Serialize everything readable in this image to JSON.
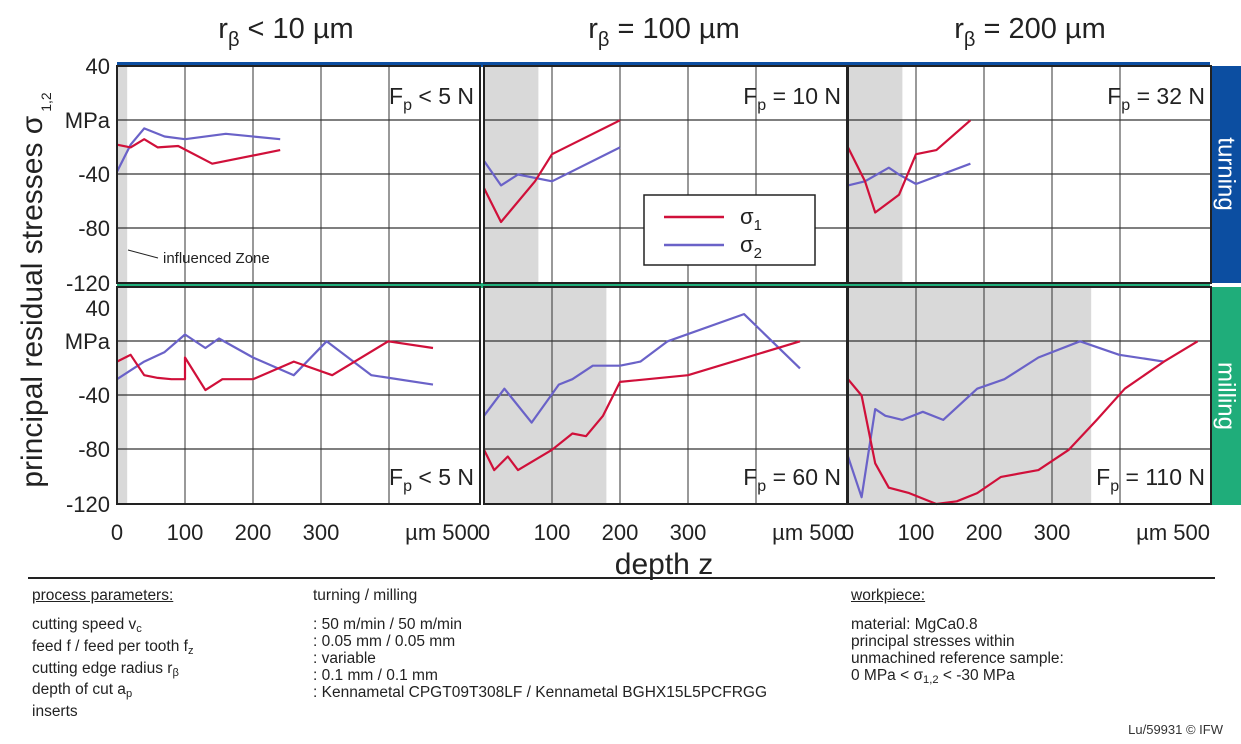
{
  "chart_data": {
    "type": "line",
    "ylabel": "principal residual stresses σ",
    "ylabel_sub": "1,2",
    "xlabel": "depth z",
    "row_labels": [
      "turning",
      "milling"
    ],
    "col_titles": [
      {
        "main": "r",
        "sub": "β",
        "rest": " < 10 µm"
      },
      {
        "main": "r",
        "sub": "β",
        "rest": " = 100 µm"
      },
      {
        "main": "r",
        "sub": "β",
        "rest": " = 200 µm"
      }
    ],
    "ylim": [
      -120,
      40
    ],
    "yticks": [
      "40",
      "MPa",
      "-40",
      "-80",
      "-120"
    ],
    "xlim": [
      0,
      500
    ],
    "xticks": [
      "0",
      "100",
      "200",
      "300",
      "µm 500"
    ],
    "grid": true,
    "legend": {
      "entries": [
        {
          "main": "σ",
          "sub": "1"
        },
        {
          "main": "σ",
          "sub": "2"
        }
      ],
      "placement": "center"
    },
    "series_colors": {
      "sigma1": "#d0103a",
      "sigma2": "#6a62c8"
    },
    "annotation": "influenced Zone",
    "panels": [
      {
        "row": "turning",
        "col": 0,
        "force": "< 5 N",
        "zone": [
          0,
          15
        ],
        "sigma1": [
          [
            0,
            -18
          ],
          [
            20,
            -20
          ],
          [
            40,
            -14
          ],
          [
            60,
            -20
          ],
          [
            90,
            -19
          ],
          [
            140,
            -32
          ],
          [
            240,
            -22
          ]
        ],
        "sigma2": [
          [
            0,
            -38
          ],
          [
            20,
            -18
          ],
          [
            40,
            -6
          ],
          [
            70,
            -12
          ],
          [
            100,
            -14
          ],
          [
            160,
            -10
          ],
          [
            240,
            -14
          ]
        ]
      },
      {
        "row": "turning",
        "col": 1,
        "force": "= 10 N",
        "zone": [
          0,
          80
        ],
        "sigma1": [
          [
            0,
            -50
          ],
          [
            25,
            -75
          ],
          [
            75,
            -45
          ],
          [
            100,
            -25
          ],
          [
            200,
            0
          ]
        ],
        "sigma2": [
          [
            0,
            -30
          ],
          [
            25,
            -48
          ],
          [
            50,
            -40
          ],
          [
            100,
            -45
          ],
          [
            200,
            -20
          ]
        ]
      },
      {
        "row": "turning",
        "col": 2,
        "force": "= 32 N",
        "zone": [
          0,
          80
        ],
        "sigma1": [
          [
            0,
            -20
          ],
          [
            25,
            -45
          ],
          [
            40,
            -68
          ],
          [
            75,
            -55
          ],
          [
            100,
            -25
          ],
          [
            130,
            -22
          ],
          [
            180,
            0
          ]
        ],
        "sigma2": [
          [
            0,
            -48
          ],
          [
            25,
            -45
          ],
          [
            60,
            -35
          ],
          [
            75,
            -40
          ],
          [
            100,
            -47
          ],
          [
            180,
            -32
          ]
        ]
      },
      {
        "row": "milling",
        "col": 0,
        "force": "< 5 N",
        "zone": [
          0,
          15
        ],
        "sigma1": [
          [
            0,
            -15
          ],
          [
            20,
            -10
          ],
          [
            40,
            -25
          ],
          [
            60,
            -27
          ],
          [
            80,
            -28
          ],
          [
            100,
            -28
          ],
          [
            100,
            -12
          ],
          [
            130,
            -36
          ],
          [
            155,
            -28
          ],
          [
            200,
            -28
          ],
          [
            260,
            -15
          ],
          [
            320,
            -25
          ],
          [
            420,
            0
          ],
          [
            500,
            -5
          ]
        ],
        "sigma2": [
          [
            0,
            -28
          ],
          [
            40,
            -15
          ],
          [
            70,
            -8
          ],
          [
            100,
            5
          ],
          [
            130,
            -5
          ],
          [
            150,
            2
          ],
          [
            200,
            -12
          ],
          [
            260,
            -25
          ],
          [
            310,
            0
          ],
          [
            390,
            -25
          ],
          [
            500,
            -32
          ]
        ]
      },
      {
        "row": "milling",
        "col": 1,
        "force": "= 60 N",
        "zone": [
          0,
          180
        ],
        "sigma1": [
          [
            0,
            -80
          ],
          [
            15,
            -95
          ],
          [
            35,
            -85
          ],
          [
            50,
            -95
          ],
          [
            100,
            -80
          ],
          [
            130,
            -68
          ],
          [
            150,
            -70
          ],
          [
            175,
            -55
          ],
          [
            200,
            -30
          ],
          [
            300,
            -25
          ],
          [
            500,
            0
          ]
        ],
        "sigma2": [
          [
            0,
            -55
          ],
          [
            30,
            -35
          ],
          [
            70,
            -60
          ],
          [
            110,
            -32
          ],
          [
            130,
            -28
          ],
          [
            160,
            -18
          ],
          [
            200,
            -18
          ],
          [
            230,
            -15
          ],
          [
            270,
            0
          ],
          [
            400,
            20
          ],
          [
            500,
            -20
          ]
        ]
      },
      {
        "row": "milling",
        "col": 2,
        "force": "= 110 N",
        "zone": [
          0,
          370
        ],
        "sigma1": [
          [
            0,
            -28
          ],
          [
            20,
            -40
          ],
          [
            40,
            -90
          ],
          [
            60,
            -108
          ],
          [
            90,
            -112
          ],
          [
            130,
            -120
          ],
          [
            160,
            -118
          ],
          [
            190,
            -112
          ],
          [
            225,
            -100
          ],
          [
            280,
            -95
          ],
          [
            330,
            -80
          ],
          [
            380,
            -58
          ],
          [
            430,
            -35
          ],
          [
            500,
            -15
          ],
          [
            560,
            0
          ]
        ],
        "sigma2": [
          [
            0,
            -85
          ],
          [
            20,
            -115
          ],
          [
            40,
            -50
          ],
          [
            55,
            -55
          ],
          [
            80,
            -58
          ],
          [
            110,
            -52
          ],
          [
            140,
            -58
          ],
          [
            190,
            -35
          ],
          [
            230,
            -28
          ],
          [
            280,
            -12
          ],
          [
            350,
            0
          ],
          [
            420,
            -10
          ],
          [
            500,
            -15
          ]
        ]
      }
    ]
  },
  "params": {
    "col1_header": "process parameters:",
    "col1_rows": [
      {
        "main": "cutting speed v",
        "sub": "c"
      },
      {
        "main": "feed f / feed per tooth f",
        "sub": "z"
      },
      {
        "main": "cutting edge radius r",
        "sub": "β"
      },
      {
        "main": "depth of cut a",
        "sub": "p"
      },
      {
        "main": "inserts",
        "sub": ""
      }
    ],
    "col2_header": "turning / milling",
    "col2_rows": [
      ": 50 m/min / 50 m/min",
      ": 0.05 mm / 0.05 mm",
      ": variable",
      ": 0.1 mm / 0.1 mm",
      ": Kennametal CPGT09T308LF / Kennametal BGHX15L5PCFRGG"
    ],
    "col3_header": "workpiece:",
    "col3_rows": [
      "material: MgCa0.8",
      "principal stresses within",
      "unmachined reference sample:"
    ],
    "col3_last": {
      "pre": "0 MPa < σ",
      "sub": "1,2",
      "post": " < -30 MPa"
    }
  },
  "credit": "Lu/59931 © IFW"
}
